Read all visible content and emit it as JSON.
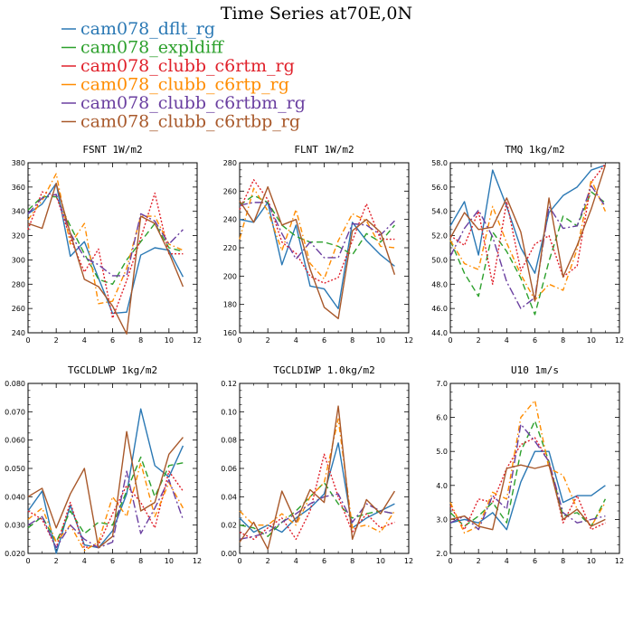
{
  "title": "Time Series at70E,0N",
  "legend": [
    {
      "name": "cam078_dflt_rg",
      "color": "#2a78b4",
      "dash": "solid"
    },
    {
      "name": "cam078_expldiff",
      "color": "#2ca02c",
      "dash": "longdash"
    },
    {
      "name": "cam078_clubb_c6rtm_rg",
      "color": "#e0202a",
      "dash": "dot"
    },
    {
      "name": "cam078_clubb_c6rtp_rg",
      "color": "#ff8c00",
      "dash": "dashdot"
    },
    {
      "name": "cam078_clubb_c6rtbm_rg",
      "color": "#6a3fa0",
      "dash": "longdashdot"
    },
    {
      "name": "cam078_clubb_c6rtbp_rg",
      "color": "#a8582a",
      "dash": "solid"
    }
  ],
  "chart_data": [
    {
      "type": "line",
      "title": "FSNT   1W/m2",
      "x": [
        0,
        1,
        2,
        3,
        4,
        5,
        6,
        7,
        8,
        9,
        10,
        11
      ],
      "xlim": [
        0,
        12
      ],
      "xticks": [
        "0",
        "2",
        "4",
        "6",
        "8",
        "10",
        "12"
      ],
      "ylim": [
        240,
        380
      ],
      "yticks": [
        "240",
        "260",
        "280",
        "300",
        "320",
        "340",
        "360",
        "380"
      ],
      "series": [
        {
          "name": "cam078_dflt_rg",
          "values": [
            338,
            346,
            363,
            303,
            315,
            285,
            256,
            257,
            304,
            310,
            308,
            286
          ]
        },
        {
          "name": "cam078_expldiff",
          "values": [
            341,
            352,
            352,
            328,
            305,
            284,
            280,
            300,
            315,
            330,
            310,
            307
          ]
        },
        {
          "name": "cam078_clubb_c6rtm_rg",
          "values": [
            325,
            356,
            353,
            318,
            290,
            309,
            252,
            283,
            318,
            355,
            305,
            305
          ]
        },
        {
          "name": "cam078_clubb_c6rtp_rg",
          "values": [
            333,
            349,
            371,
            313,
            330,
            264,
            266,
            293,
            336,
            336,
            313,
            308
          ]
        },
        {
          "name": "cam078_clubb_c6rtbm_rg",
          "values": [
            338,
            351,
            354,
            322,
            302,
            296,
            287,
            287,
            338,
            332,
            313,
            325
          ]
        },
        {
          "name": "cam078_clubb_c6rtbp_rg",
          "values": [
            330,
            326,
            363,
            322,
            284,
            278,
            262,
            239,
            336,
            330,
            306,
            278
          ]
        }
      ]
    },
    {
      "type": "line",
      "title": "FLNT   1W/m2",
      "x": [
        0,
        1,
        2,
        3,
        4,
        5,
        6,
        7,
        8,
        9,
        10,
        11
      ],
      "xlim": [
        0,
        12
      ],
      "xticks": [
        "0",
        "2",
        "4",
        "6",
        "8",
        "10",
        "12"
      ],
      "ylim": [
        160,
        280
      ],
      "yticks": [
        "160",
        "180",
        "200",
        "220",
        "240",
        "260",
        "280"
      ],
      "series": [
        {
          "name": "cam078_dflt_rg",
          "values": [
            240,
            238,
            252,
            208,
            236,
            193,
            191,
            177,
            238,
            225,
            215,
            207
          ]
        },
        {
          "name": "cam078_expldiff",
          "values": [
            250,
            257,
            252,
            236,
            228,
            224,
            224,
            221,
            215,
            230,
            224,
            236
          ]
        },
        {
          "name": "cam078_clubb_c6rtm_rg",
          "values": [
            247,
            268,
            254,
            224,
            216,
            200,
            195,
            199,
            225,
            251,
            226,
            226
          ]
        },
        {
          "name": "cam078_clubb_c6rtp_rg",
          "values": [
            226,
            262,
            246,
            218,
            247,
            209,
            198,
            225,
            244,
            239,
            221,
            220
          ]
        },
        {
          "name": "cam078_clubb_c6rtbm_rg",
          "values": [
            250,
            252,
            252,
            230,
            212,
            224,
            213,
            213,
            237,
            236,
            229,
            239
          ]
        },
        {
          "name": "cam078_clubb_c6rtbp_rg",
          "values": [
            253,
            238,
            263,
            236,
            240,
            205,
            178,
            170,
            232,
            240,
            231,
            201
          ]
        }
      ]
    },
    {
      "type": "line",
      "title": "TMQ   1kg/m2",
      "x": [
        0,
        1,
        2,
        3,
        4,
        5,
        6,
        7,
        8,
        9,
        10,
        11
      ],
      "xlim": [
        0,
        12
      ],
      "xticks": [
        "0",
        "2",
        "4",
        "6",
        "8",
        "10",
        "12"
      ],
      "ylim": [
        44.0,
        58.0
      ],
      "yticks": [
        "44.0",
        "46.0",
        "48.0",
        "50.0",
        "52.0",
        "54.0",
        "56.0",
        "58.0"
      ],
      "series": [
        {
          "name": "cam078_dflt_rg",
          "values": [
            52.8,
            54.8,
            50.4,
            57.4,
            54.4,
            51.0,
            48.9,
            53.9,
            55.3,
            56.0,
            57.4,
            57.8
          ]
        },
        {
          "name": "cam078_expldiff",
          "values": [
            51.6,
            48.9,
            47.0,
            52.3,
            50.7,
            48.5,
            45.5,
            49.9,
            53.6,
            52.8,
            55.6,
            54.7
          ]
        },
        {
          "name": "cam078_clubb_c6rtm_rg",
          "values": [
            52.0,
            51.2,
            54.0,
            48.0,
            54.8,
            49.1,
            51.3,
            52.0,
            48.6,
            49.5,
            56.4,
            57.9
          ]
        },
        {
          "name": "cam078_clubb_c6rtp_rg",
          "values": [
            51.6,
            49.7,
            49.2,
            54.4,
            51.4,
            48.8,
            46.7,
            48.0,
            47.5,
            50.9,
            56.6,
            54.0
          ]
        },
        {
          "name": "cam078_clubb_c6rtbm_rg",
          "values": [
            50.3,
            52.6,
            54.1,
            51.9,
            48.2,
            46.0,
            46.9,
            54.4,
            52.6,
            52.8,
            56.1,
            54.4
          ]
        },
        {
          "name": "cam078_clubb_c6rtbp_rg",
          "values": [
            51.8,
            53.9,
            52.5,
            52.7,
            55.1,
            52.3,
            46.6,
            55.1,
            48.6,
            51.2,
            54.2,
            57.8
          ]
        }
      ]
    },
    {
      "type": "line",
      "title": "TGCLDLWP   1kg/m2",
      "x": [
        0,
        1,
        2,
        3,
        4,
        5,
        6,
        7,
        8,
        9,
        10,
        11
      ],
      "xlim": [
        0,
        12
      ],
      "xticks": [
        "0",
        "2",
        "4",
        "6",
        "8",
        "10",
        "12"
      ],
      "ylim": [
        0.02,
        0.08
      ],
      "yticks": [
        "0.020",
        "0.030",
        "0.040",
        "0.050",
        "0.060",
        "0.070",
        "0.080"
      ],
      "series": [
        {
          "name": "cam078_dflt_rg",
          "values": [
            0.035,
            0.042,
            0.02,
            0.037,
            0.023,
            0.022,
            0.028,
            0.041,
            0.071,
            0.051,
            0.047,
            0.058
          ]
        },
        {
          "name": "cam078_expldiff",
          "values": [
            0.029,
            0.033,
            0.024,
            0.035,
            0.027,
            0.031,
            0.03,
            0.042,
            0.054,
            0.04,
            0.051,
            0.052
          ]
        },
        {
          "name": "cam078_clubb_c6rtm_rg",
          "values": [
            0.035,
            0.032,
            0.022,
            0.038,
            0.022,
            0.023,
            0.034,
            0.044,
            0.038,
            0.029,
            0.049,
            0.042
          ]
        },
        {
          "name": "cam078_clubb_c6rtp_rg",
          "values": [
            0.032,
            0.036,
            0.024,
            0.03,
            0.021,
            0.024,
            0.04,
            0.033,
            0.052,
            0.033,
            0.045,
            0.036
          ]
        },
        {
          "name": "cam078_clubb_c6rtbm_rg",
          "values": [
            0.03,
            0.033,
            0.022,
            0.03,
            0.025,
            0.022,
            0.024,
            0.049,
            0.027,
            0.036,
            0.046,
            0.032
          ]
        },
        {
          "name": "cam078_clubb_c6rtbp_rg",
          "values": [
            0.04,
            0.043,
            0.029,
            0.041,
            0.05,
            0.022,
            0.026,
            0.063,
            0.035,
            0.038,
            0.055,
            0.061
          ]
        }
      ]
    },
    {
      "type": "line",
      "title": "TGCLDIWP   1.0kg/m2",
      "x": [
        0,
        1,
        2,
        3,
        4,
        5,
        6,
        7,
        8,
        9,
        10,
        11
      ],
      "xlim": [
        0,
        12
      ],
      "xticks": [
        "0",
        "2",
        "4",
        "6",
        "8",
        "10",
        "12"
      ],
      "ylim": [
        0.0,
        0.12
      ],
      "yticks": [
        "0.00",
        "0.02",
        "0.04",
        "0.06",
        "0.08",
        "0.10",
        "0.12"
      ],
      "series": [
        {
          "name": "cam078_dflt_rg",
          "values": [
            0.025,
            0.015,
            0.02,
            0.015,
            0.025,
            0.032,
            0.042,
            0.078,
            0.018,
            0.025,
            0.03,
            0.035
          ]
        },
        {
          "name": "cam078_expldiff",
          "values": [
            0.02,
            0.018,
            0.012,
            0.022,
            0.03,
            0.04,
            0.05,
            0.035,
            0.025,
            0.028,
            0.03,
            0.028
          ]
        },
        {
          "name": "cam078_clubb_c6rtm_rg",
          "values": [
            0.015,
            0.01,
            0.018,
            0.025,
            0.01,
            0.03,
            0.07,
            0.04,
            0.015,
            0.028,
            0.018,
            0.022
          ]
        },
        {
          "name": "cam078_clubb_c6rtp_rg",
          "values": [
            0.03,
            0.02,
            0.02,
            0.028,
            0.02,
            0.04,
            0.05,
            0.095,
            0.018,
            0.02,
            0.015,
            0.03
          ]
        },
        {
          "name": "cam078_clubb_c6rtbm_rg",
          "values": [
            0.01,
            0.012,
            0.015,
            0.022,
            0.028,
            0.035,
            0.04,
            0.042,
            0.022,
            0.035,
            0.03,
            0.028
          ]
        },
        {
          "name": "cam078_clubb_c6rtbp_rg",
          "values": [
            0.008,
            0.022,
            0.003,
            0.044,
            0.022,
            0.045,
            0.036,
            0.104,
            0.01,
            0.038,
            0.028,
            0.044
          ]
        }
      ]
    },
    {
      "type": "line",
      "title": "U10   1m/s",
      "x": [
        0,
        1,
        2,
        3,
        4,
        5,
        6,
        7,
        8,
        9,
        10,
        11
      ],
      "xlim": [
        0,
        12
      ],
      "xticks": [
        "0",
        "2",
        "4",
        "6",
        "8",
        "10",
        "12"
      ],
      "ylim": [
        2.0,
        7.0
      ],
      "yticks": [
        "2.0",
        "3.0",
        "4.0",
        "5.0",
        "6.0",
        "7.0"
      ],
      "series": [
        {
          "name": "cam078_dflt_rg",
          "values": [
            2.9,
            3.0,
            2.9,
            3.2,
            2.7,
            4.1,
            5.0,
            5.0,
            3.5,
            3.7,
            3.7,
            4.0
          ]
        },
        {
          "name": "cam078_expldiff",
          "values": [
            3.2,
            2.8,
            3.1,
            3.5,
            2.9,
            5.0,
            5.9,
            4.7,
            3.1,
            3.2,
            2.8,
            3.6
          ]
        },
        {
          "name": "cam078_clubb_c6rtm_rg",
          "values": [
            3.4,
            2.7,
            3.6,
            3.5,
            4.5,
            5.2,
            5.4,
            4.7,
            2.9,
            3.7,
            2.7,
            2.9
          ]
        },
        {
          "name": "cam078_clubb_c6rtp_rg",
          "values": [
            3.5,
            2.6,
            2.8,
            3.8,
            3.6,
            6.0,
            6.5,
            4.5,
            4.3,
            3.3,
            2.8,
            3.5
          ]
        },
        {
          "name": "cam078_clubb_c6rtbm_rg",
          "values": [
            2.9,
            3.1,
            2.7,
            3.7,
            3.3,
            5.8,
            5.3,
            4.7,
            3.2,
            2.9,
            3.0,
            3.1
          ]
        },
        {
          "name": "cam078_clubb_c6rtbp_rg",
          "values": [
            3.0,
            3.1,
            2.8,
            2.7,
            4.5,
            4.6,
            4.5,
            4.6,
            3.0,
            3.3,
            2.8,
            3.0
          ]
        }
      ]
    }
  ]
}
